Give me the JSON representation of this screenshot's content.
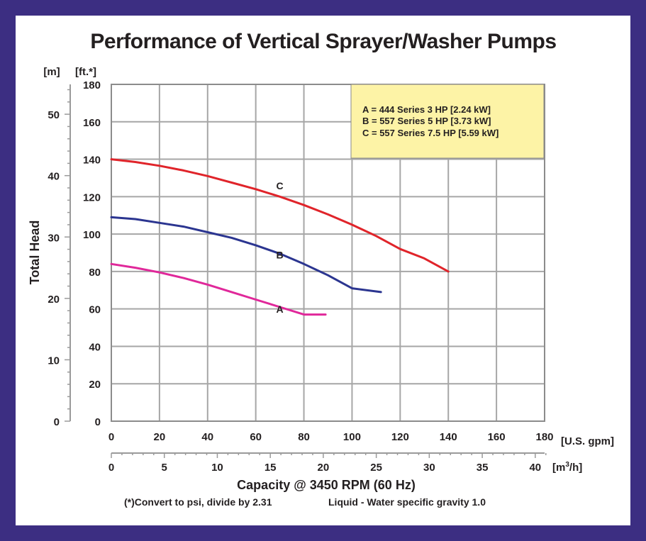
{
  "chart_data": {
    "type": "line",
    "title": "Performance of Vertical Sprayer/Washer Pumps",
    "xlabel": "Capacity @ 3450 RPM (60 Hz)",
    "ylabel": "Total Head",
    "x_unit_primary": "[U.S. gpm]",
    "x_unit_secondary": "[m³/h]",
    "y_unit_primary": "[ft.*]",
    "y_unit_secondary": "[m]",
    "xlim": [
      0,
      180
    ],
    "ylim": [
      0,
      180
    ],
    "x_ticks": [
      0,
      20,
      40,
      60,
      80,
      100,
      120,
      140,
      160,
      180
    ],
    "y_ticks": [
      0,
      20,
      40,
      60,
      80,
      100,
      120,
      140,
      160,
      180
    ],
    "x2_ticks": [
      0,
      5,
      10,
      15,
      20,
      25,
      30,
      35,
      40
    ],
    "y2_ticks": [
      0,
      10,
      20,
      30,
      40,
      50
    ],
    "grid": true,
    "legend_position": "top-right",
    "legend": [
      "A = 444 Series 3 HP [2.24 kW]",
      "B = 557 Series 5 HP [3.73 kW]",
      "C = 557 Series 7.5 HP [5.59 kW]"
    ],
    "series": [
      {
        "name": "A",
        "color": "#e0289a",
        "x": [
          0,
          10,
          20,
          30,
          40,
          50,
          60,
          70,
          80,
          89
        ],
        "y": [
          84,
          82,
          79.5,
          76.5,
          73,
          69,
          65,
          61,
          57,
          57
        ]
      },
      {
        "name": "B",
        "color": "#2b3590",
        "x": [
          0,
          10,
          20,
          30,
          40,
          50,
          60,
          70,
          80,
          90,
          100,
          112
        ],
        "y": [
          109,
          108,
          106,
          104,
          101,
          98,
          94,
          89.5,
          84,
          78,
          71,
          69
        ]
      },
      {
        "name": "C",
        "color": "#e0242a",
        "x": [
          0,
          10,
          20,
          30,
          40,
          50,
          60,
          70,
          80,
          90,
          100,
          110,
          120,
          130,
          140
        ],
        "y": [
          140,
          138.5,
          136.5,
          134,
          131,
          127.5,
          124,
          120,
          115.5,
          110.5,
          105,
          99,
          92,
          87,
          80
        ]
      }
    ],
    "footnote": "(*)Convert to psi, divide by 2.31",
    "footnote2": "Liquid - Water specific gravity 1.0"
  },
  "colors": {
    "border": "#3c2e82",
    "legend_fill": "#fdf3a6",
    "grid": "#a0a0a0"
  }
}
